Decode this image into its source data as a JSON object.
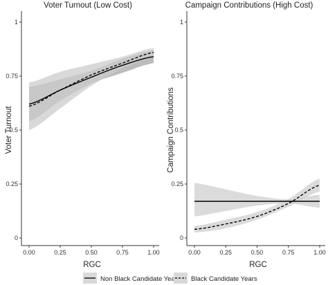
{
  "chart_data": [
    {
      "type": "line",
      "title": "Voter Turnout (Low Cost)",
      "xlabel": "RGC",
      "ylabel": "Voter Turnout",
      "xlim": [
        0,
        1
      ],
      "ylim": [
        0,
        1
      ],
      "xticks": [
        "0.00",
        "0.25",
        "0.50",
        "0.75",
        "1.00"
      ],
      "yticks": [
        "0",
        "0.25",
        "0.5",
        "0.75",
        "1"
      ],
      "grid": false,
      "series": [
        {
          "name": "Non Black Candidate Years",
          "line_style": "solid",
          "band_color": "#a6a6a6",
          "x": [
            0,
            0.25,
            0.5,
            0.75,
            1
          ],
          "y": [
            0.62,
            0.685,
            0.745,
            0.8,
            0.84
          ],
          "lower": [
            0.54,
            0.635,
            0.715,
            0.765,
            0.81
          ],
          "upper": [
            0.7,
            0.735,
            0.775,
            0.83,
            0.87
          ]
        },
        {
          "name": "Black Candidate Years",
          "line_style": "dashed",
          "band_color": "#cccccc",
          "x": [
            0,
            0.25,
            0.5,
            0.75,
            1
          ],
          "y": [
            0.61,
            0.685,
            0.755,
            0.81,
            0.86
          ],
          "lower": [
            0.5,
            0.6,
            0.705,
            0.785,
            0.84
          ],
          "upper": [
            0.72,
            0.77,
            0.805,
            0.84,
            0.88
          ]
        }
      ]
    },
    {
      "type": "line",
      "title": "Campaign Contributions (High Cost)",
      "xlabel": "RGC",
      "ylabel": "Campaign Contributions",
      "xlim": [
        0,
        1
      ],
      "ylim": [
        0,
        1
      ],
      "xticks": [
        "0.00",
        "0.25",
        "0.50",
        "0.75",
        "1.00"
      ],
      "yticks": [
        "0",
        "0.25",
        "0.5",
        "0.75",
        "1"
      ],
      "grid": false,
      "series": [
        {
          "name": "Non Black Candidate Years",
          "line_style": "solid",
          "band_color": "#cfcfcf",
          "x": [
            0,
            0.25,
            0.5,
            0.75,
            1
          ],
          "y": [
            0.17,
            0.17,
            0.17,
            0.17,
            0.17
          ],
          "lower": [
            0.1,
            0.125,
            0.15,
            0.16,
            0.14
          ],
          "upper": [
            0.255,
            0.225,
            0.195,
            0.18,
            0.2
          ]
        },
        {
          "name": "Black Candidate Years",
          "line_style": "dashed",
          "band_color": "#cfcfcf",
          "x": [
            0,
            0.25,
            0.5,
            0.75,
            1
          ],
          "y": [
            0.04,
            0.065,
            0.1,
            0.16,
            0.245
          ],
          "lower": [
            0.025,
            0.045,
            0.085,
            0.145,
            0.215
          ],
          "upper": [
            0.055,
            0.085,
            0.12,
            0.18,
            0.275
          ]
        }
      ]
    }
  ],
  "legend": {
    "position": "bottom",
    "items": [
      {
        "label": "Non Black Candidate Years",
        "line_style": "solid"
      },
      {
        "label": "Black Candidate Years",
        "line_style": "dashed"
      }
    ]
  },
  "colors": {
    "line": "#000000",
    "axis": "#333333",
    "legend_key_bg": "#d9d9d9"
  }
}
